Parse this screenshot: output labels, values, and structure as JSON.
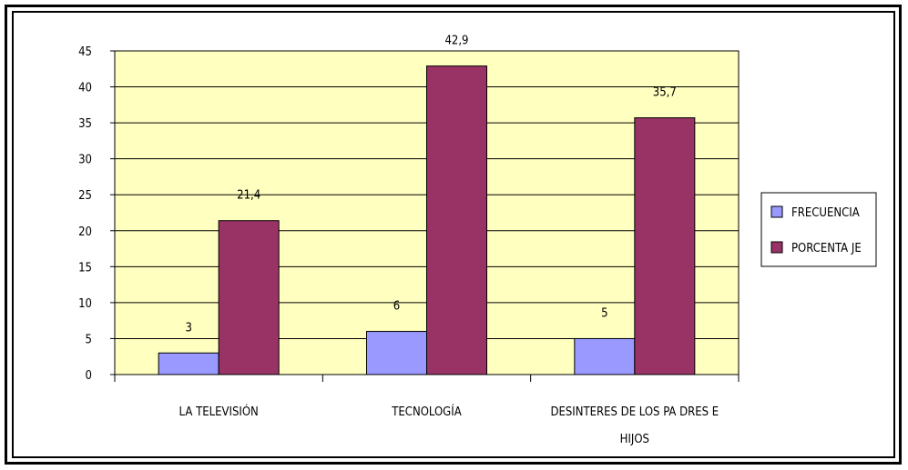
{
  "chart_data": {
    "type": "bar",
    "categories": [
      "LA  TELEVISIÓN",
      "TECNOLOGÍA",
      "DESINTERES DE LOS PA DRES E HIJOS"
    ],
    "category_lines": [
      [
        "LA  TELEVISIÓN"
      ],
      [
        "TECNOLOGÍA"
      ],
      [
        "DESINTERES DE LOS PA DRES E",
        "HIJOS"
      ]
    ],
    "series": [
      {
        "name": "FRECUENCIA",
        "values": [
          3,
          6,
          5
        ],
        "labels": [
          "3",
          "6",
          "5"
        ],
        "color": "#9999ff"
      },
      {
        "name": "PORCENTA JE",
        "values": [
          21.4,
          42.9,
          35.7
        ],
        "labels": [
          "21,4",
          "42,9",
          "35,7"
        ],
        "color": "#993366"
      }
    ],
    "ylim": [
      0,
      45
    ],
    "yticks": [
      0,
      5,
      10,
      15,
      20,
      25,
      30,
      35,
      40,
      45
    ],
    "plot_background": "#ffffc0",
    "grid": true,
    "legend_position": "right"
  }
}
